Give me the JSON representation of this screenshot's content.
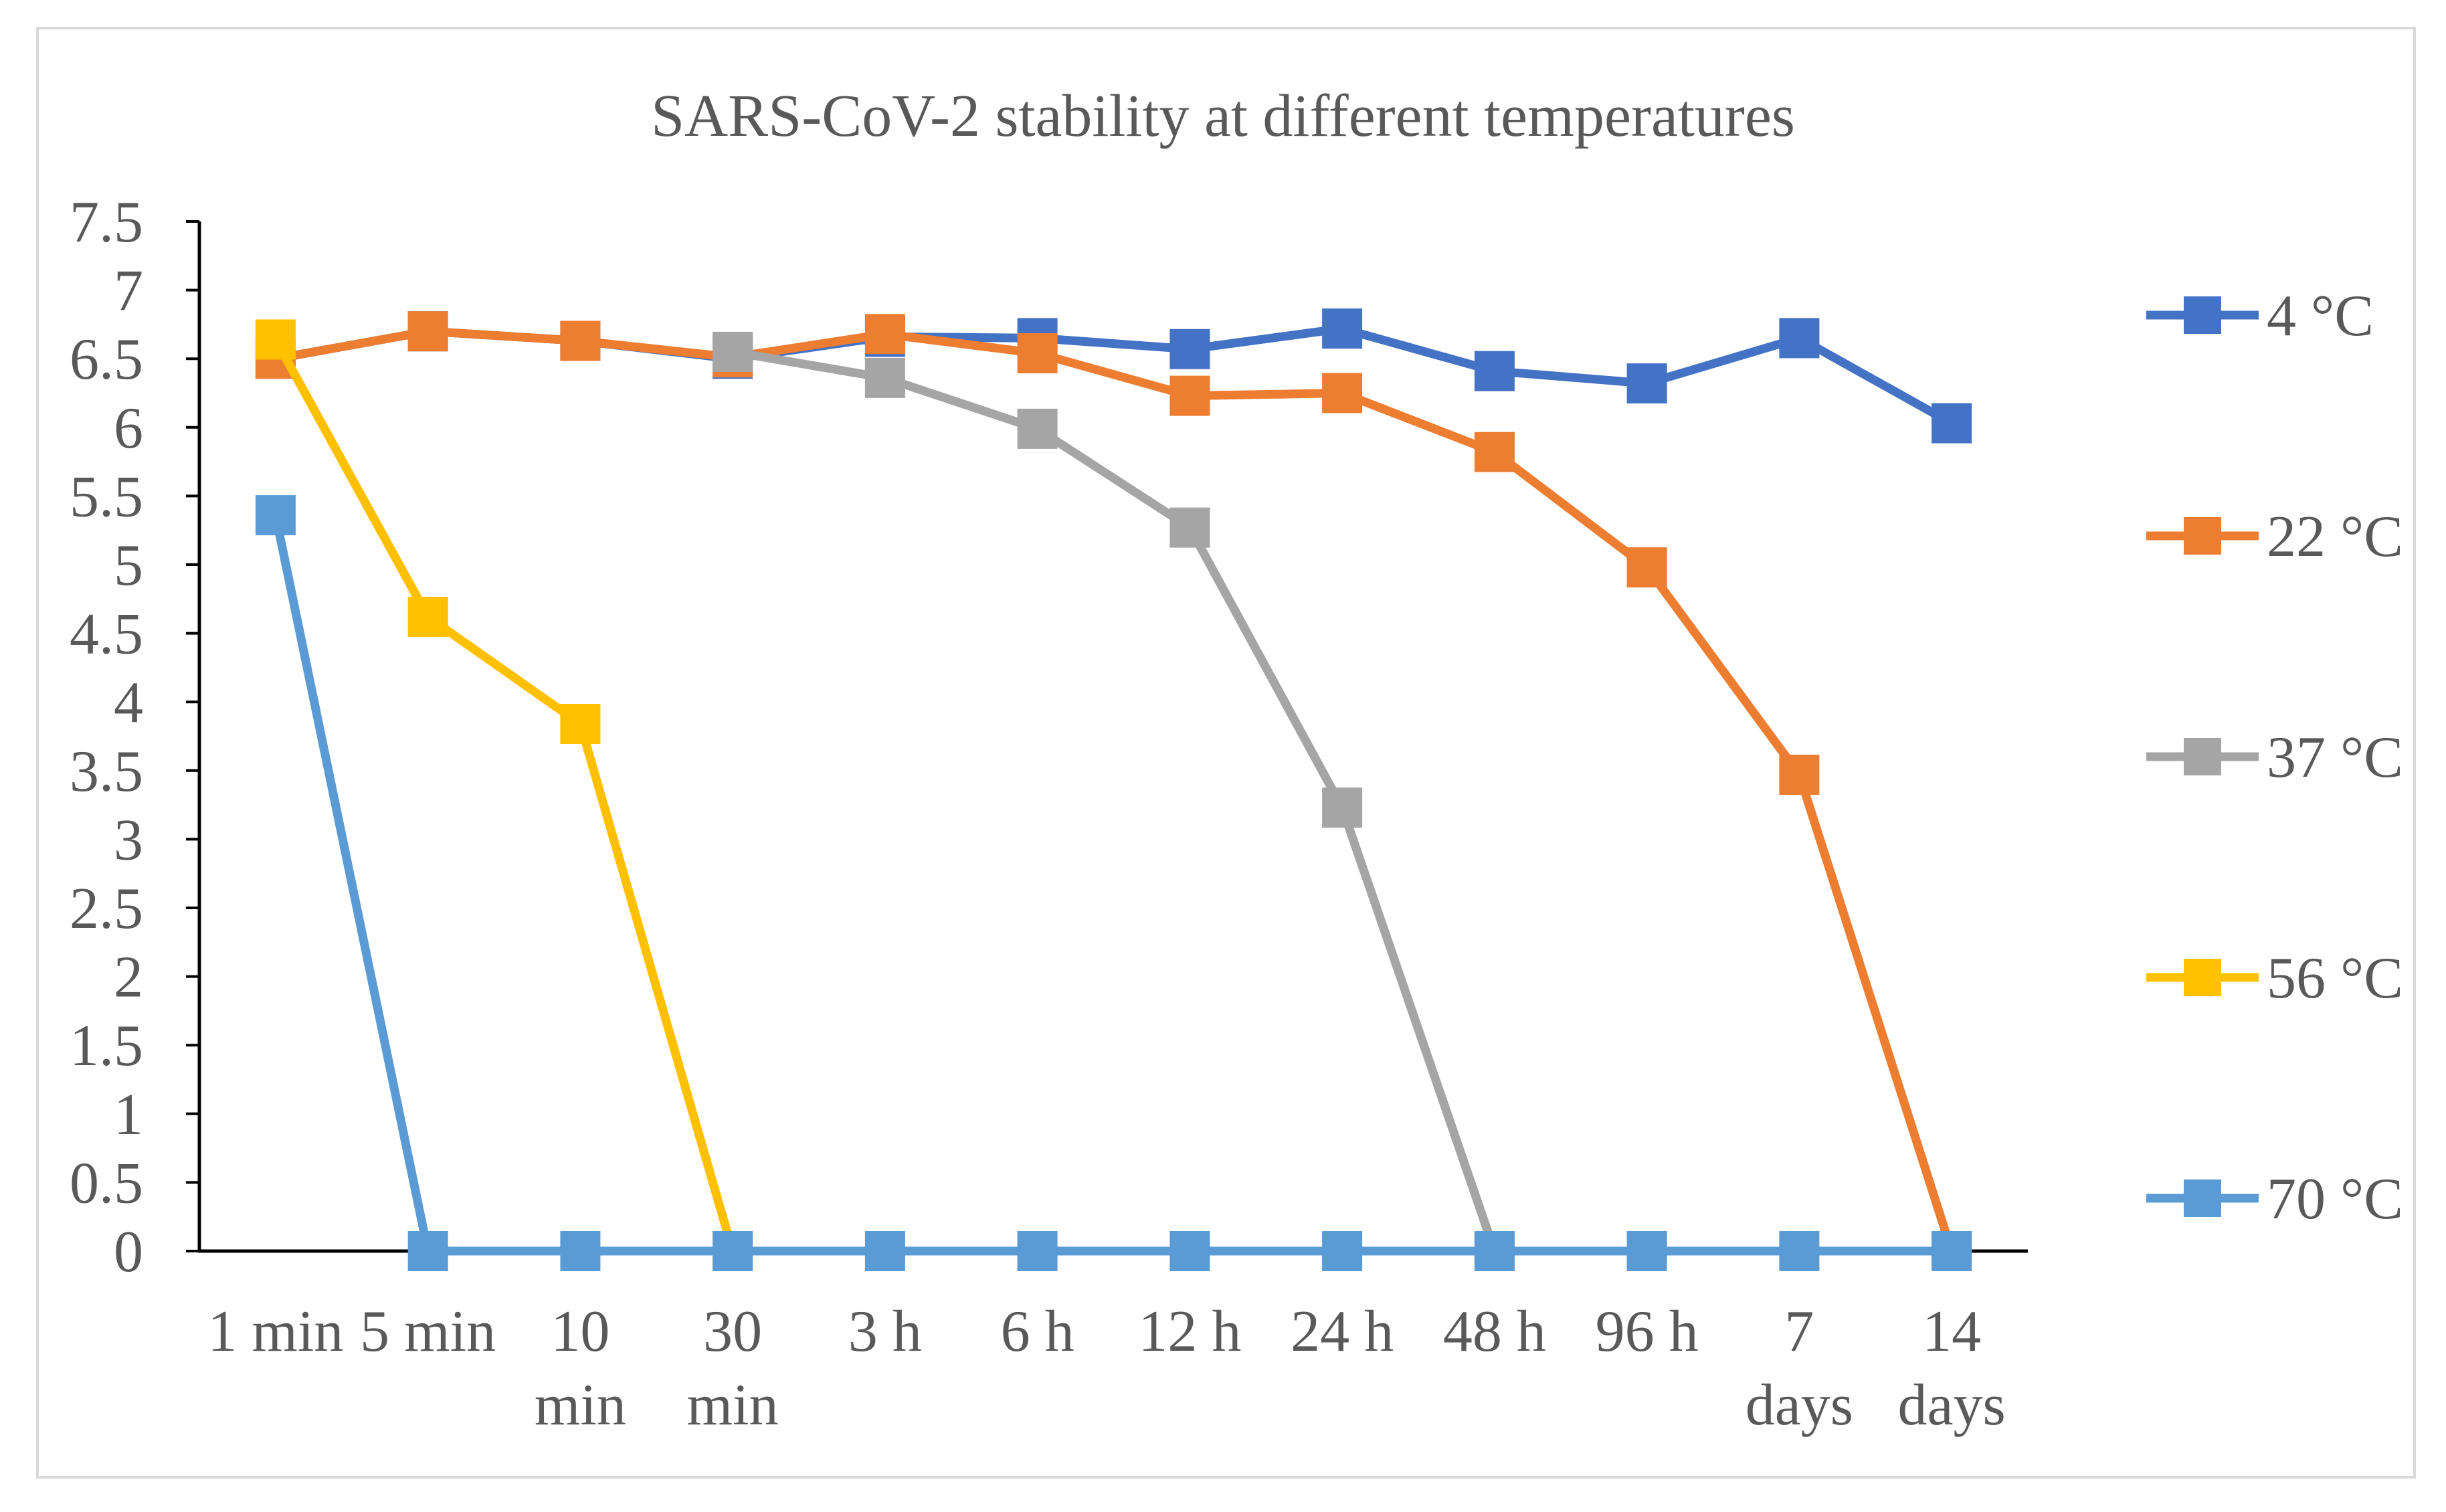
{
  "chart_data": {
    "type": "line",
    "title": "SARS-CoV-2 stability at different temperatures",
    "categories": [
      "1 min",
      "5 min",
      "10 min",
      "30 min",
      "3 h",
      "6 h",
      "12 h",
      "24 h",
      "48 h",
      "96 h",
      "7 days",
      "14 days"
    ],
    "ylim": [
      0,
      7.5
    ],
    "yticks": [
      0,
      0.5,
      1,
      1.5,
      2,
      2.5,
      3,
      3.5,
      4,
      4.5,
      5,
      5.5,
      6,
      6.5,
      7,
      7.5
    ],
    "grid": false,
    "legend_position": "right",
    "series": [
      {
        "name": "4 °C",
        "color": "#4472C4",
        "values": [
          6.5,
          6.7,
          6.63,
          6.5,
          6.66,
          6.65,
          6.57,
          6.72,
          6.41,
          6.32,
          6.65,
          6.03
        ]
      },
      {
        "name": "22 °C",
        "color": "#ED7D31",
        "values": [
          6.5,
          6.7,
          6.63,
          6.51,
          6.68,
          6.54,
          6.23,
          6.25,
          5.82,
          4.98,
          3.47,
          0
        ]
      },
      {
        "name": "37 °C",
        "color": "#A5A5A5",
        "values": [
          null,
          null,
          null,
          6.55,
          6.36,
          5.99,
          5.27,
          3.23,
          0,
          null,
          null,
          null
        ]
      },
      {
        "name": "56 °C",
        "color": "#FFC000",
        "values": [
          6.64,
          4.62,
          3.84,
          0,
          null,
          null,
          null,
          null,
          null,
          null,
          null,
          null
        ]
      },
      {
        "name": "70 °C",
        "color": "#5B9BD5",
        "values": [
          5.36,
          0,
          0,
          0,
          0,
          0,
          0,
          0,
          0,
          0,
          0,
          0
        ]
      }
    ]
  }
}
